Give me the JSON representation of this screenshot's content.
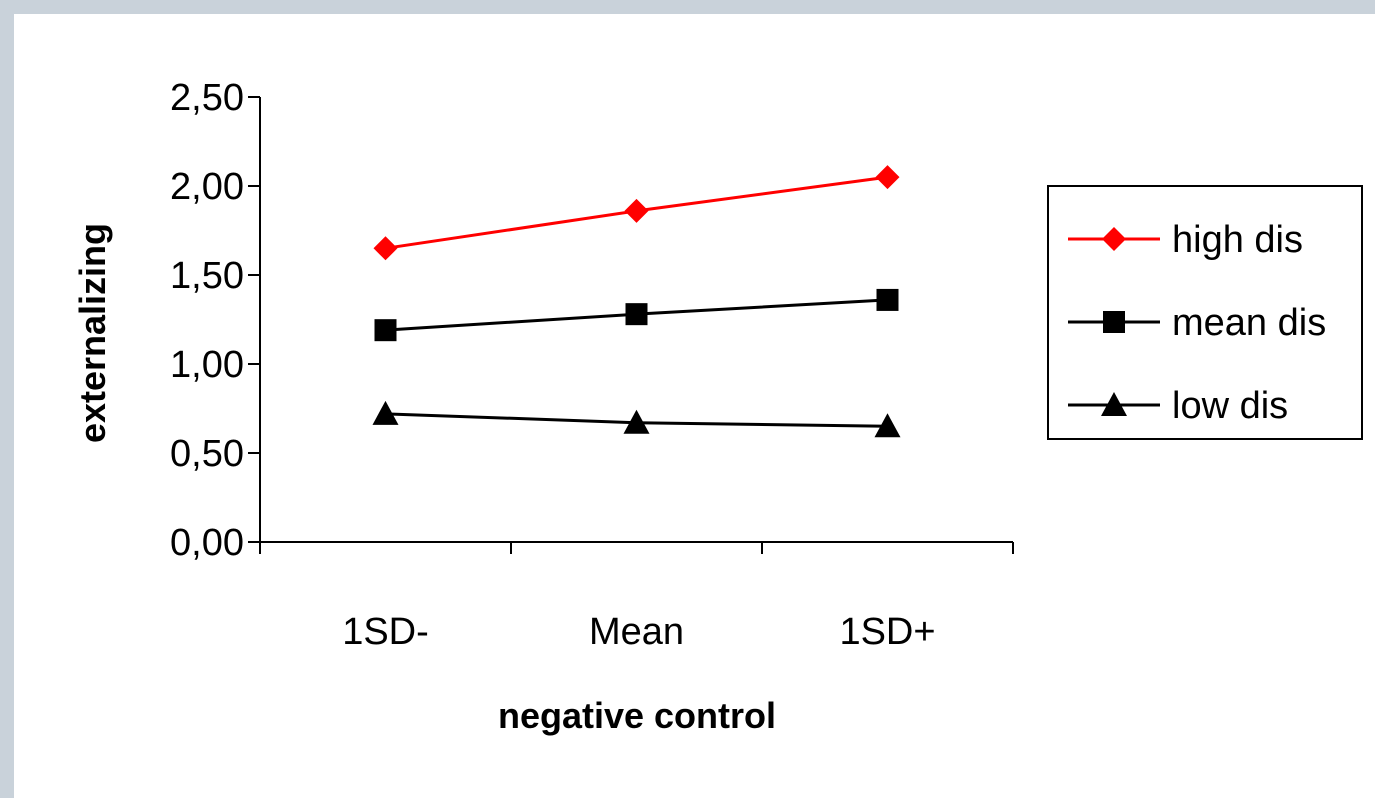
{
  "chart_data": {
    "type": "line",
    "title": "",
    "xlabel": "negative control",
    "ylabel": "externalizing",
    "categories": [
      "1SD-",
      "Mean",
      "1SD+"
    ],
    "ylim": [
      0,
      2.5
    ],
    "yticks": [
      "0,00",
      "0,50",
      "1,00",
      "1,50",
      "2,00",
      "2,50"
    ],
    "grid": false,
    "legend_position": "right",
    "series": [
      {
        "name": "high dis",
        "values": [
          1.65,
          1.86,
          2.05
        ],
        "color": "#ff0000",
        "marker": "diamond"
      },
      {
        "name": "mean dis",
        "values": [
          1.19,
          1.28,
          1.36
        ],
        "color": "#000000",
        "marker": "square"
      },
      {
        "name": "low dis",
        "values": [
          0.72,
          0.67,
          0.65
        ],
        "color": "#000000",
        "marker": "triangle"
      }
    ]
  }
}
